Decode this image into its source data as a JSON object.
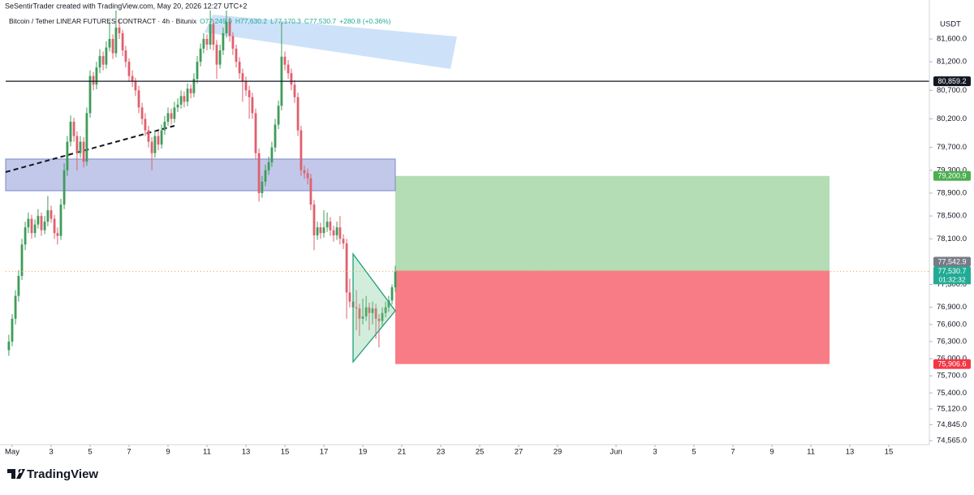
{
  "chart_data": {
    "type": "candlestick",
    "attribution": "SeSentirTrader created with TradingView.com, May 20, 2026 12:27 UTC+2",
    "title": "Bitcoin / Tether LINEAR FUTURES CONTRACT · 4h · Bitunix",
    "ohlc_labels": [
      "O77,249.9",
      "H77,630.2",
      "L77,170.3",
      "C77,530.7"
    ],
    "change": "+280.8 (+0.36%)",
    "currency": "USDT",
    "brand": "TradingView",
    "up_color": "#3f9c5a",
    "down_color": "#e0606e",
    "ylim": [
      74494,
      82140
    ],
    "xlim": [
      0.667,
      48.083
    ],
    "yticks": [
      {
        "value": 81600,
        "label": "81,600.0"
      },
      {
        "value": 81200,
        "label": "81,200.0"
      },
      {
        "value": 80700,
        "label": "80,700.0"
      },
      {
        "value": 80200,
        "label": "80,200.0"
      },
      {
        "value": 79700,
        "label": "79,700.0"
      },
      {
        "value": 79300,
        "label": "79,300.0"
      },
      {
        "value": 78900,
        "label": "78,900.0"
      },
      {
        "value": 78500,
        "label": "78,500.0"
      },
      {
        "value": 78100,
        "label": "78,100.0"
      },
      {
        "value": 77300,
        "label": "77,300.0"
      },
      {
        "value": 76900,
        "label": "76,900.0"
      },
      {
        "value": 76600,
        "label": "76,600.0"
      },
      {
        "value": 76300,
        "label": "76,300.0"
      },
      {
        "value": 76000,
        "label": "76,000.0"
      },
      {
        "value": 75700,
        "label": "75,700.0"
      },
      {
        "value": 75400,
        "label": "75,400.0"
      },
      {
        "value": 75120,
        "label": "75,120.0"
      },
      {
        "value": 74845,
        "label": "74,845.0"
      },
      {
        "value": 74565,
        "label": "74,565.0"
      }
    ],
    "xticks": [
      {
        "value": 1,
        "label": "May"
      },
      3,
      5,
      7,
      9,
      11,
      13,
      15,
      17,
      19,
      21,
      23,
      25,
      27,
      29,
      {
        "value": 32,
        "label": "Jun"
      },
      {
        "value": 34,
        "label": "3"
      },
      {
        "value": 36,
        "label": "5"
      },
      {
        "value": 38,
        "label": "7"
      },
      {
        "value": 40,
        "label": "9"
      },
      {
        "value": 42,
        "label": "11"
      },
      {
        "value": 44,
        "label": "13"
      },
      {
        "value": 46,
        "label": "15"
      }
    ],
    "price_lines": [
      {
        "value": 80859.2,
        "label": "80,859.2",
        "color": "#131722",
        "line": "solid"
      },
      {
        "value": 79200.9,
        "label": "79,200.9",
        "color": "#4caf50"
      },
      {
        "value": 77542.9,
        "label": "77,542.9",
        "color": "#787b86"
      },
      {
        "value": 77530.7,
        "label": "77,530.7",
        "color": "#22ab94",
        "line": "dotted",
        "countdown": "01:32:32"
      },
      {
        "value": 75906.6,
        "label": "75,906.6",
        "color": "#f23645"
      }
    ],
    "x": [
      0.83,
      1,
      1.17,
      1.33,
      1.5,
      1.67,
      1.83,
      2,
      2.17,
      2.33,
      2.5,
      2.67,
      2.83,
      3,
      3.17,
      3.33,
      3.5,
      3.67,
      3.83,
      4,
      4.17,
      4.33,
      4.5,
      4.67,
      4.83,
      5,
      5.17,
      5.33,
      5.5,
      5.67,
      5.83,
      6,
      6.17,
      6.33,
      6.5,
      6.67,
      6.83,
      7,
      7.17,
      7.33,
      7.5,
      7.67,
      7.83,
      8,
      8.17,
      8.33,
      8.5,
      8.67,
      8.83,
      9,
      9.17,
      9.33,
      9.5,
      9.67,
      9.83,
      10,
      10.17,
      10.33,
      10.5,
      10.67,
      10.83,
      11,
      11.17,
      11.33,
      11.5,
      11.67,
      11.83,
      12,
      12.17,
      12.33,
      12.5,
      12.67,
      12.83,
      13,
      13.17,
      13.33,
      13.5,
      13.67,
      13.83,
      14,
      14.17,
      14.33,
      14.5,
      14.67,
      14.83,
      15,
      15.17,
      15.33,
      15.5,
      15.67,
      15.83,
      16,
      16.17,
      16.33,
      16.5,
      16.67,
      16.83,
      17,
      17.17,
      17.33,
      17.5,
      17.67,
      17.83,
      18,
      18.17,
      18.33,
      18.5,
      18.67,
      18.83,
      19,
      19.17,
      19.33,
      19.5,
      19.67,
      19.83,
      20,
      20.17,
      20.33,
      20.5,
      20.67
    ],
    "candles": [
      [
        76150,
        76420,
        76050,
        76300
      ],
      [
        76300,
        76780,
        76220,
        76700
      ],
      [
        76700,
        77200,
        76600,
        77100
      ],
      [
        77100,
        77550,
        77000,
        77450
      ],
      [
        77450,
        78100,
        77380,
        78000
      ],
      [
        78000,
        78400,
        77900,
        78300
      ],
      [
        78300,
        78560,
        78200,
        78450
      ],
      [
        78450,
        78520,
        78100,
        78200
      ],
      [
        78200,
        78440,
        78120,
        78350
      ],
      [
        78350,
        78620,
        78280,
        78500
      ],
      [
        78500,
        78560,
        78150,
        78250
      ],
      [
        78250,
        78500,
        78180,
        78400
      ],
      [
        78400,
        78850,
        78320,
        78600
      ],
      [
        78600,
        78680,
        78380,
        78450
      ],
      [
        78450,
        78520,
        78100,
        78200
      ],
      [
        78200,
        78300,
        78000,
        78150
      ],
      [
        78150,
        78800,
        78080,
        78700
      ],
      [
        78700,
        79420,
        78620,
        79300
      ],
      [
        79300,
        79900,
        79200,
        79800
      ],
      [
        79800,
        80260,
        79720,
        80150
      ],
      [
        80150,
        80220,
        79800,
        79900
      ],
      [
        79900,
        79980,
        79300,
        79600
      ],
      [
        79600,
        79900,
        79520,
        79800
      ],
      [
        79800,
        79880,
        79350,
        79450
      ],
      [
        79450,
        80400,
        79380,
        80300
      ],
      [
        80300,
        81050,
        80220,
        80950
      ],
      [
        80950,
        81020,
        80700,
        80800
      ],
      [
        80800,
        81200,
        80720,
        81100
      ],
      [
        81100,
        81420,
        81000,
        81300
      ],
      [
        81300,
        81380,
        81050,
        81150
      ],
      [
        81150,
        81560,
        81080,
        81450
      ],
      [
        81450,
        81900,
        81380,
        81600
      ],
      [
        81600,
        81680,
        81250,
        81350
      ],
      [
        81350,
        82100,
        81280,
        81800
      ],
      [
        81800,
        81950,
        81600,
        81700
      ],
      [
        81700,
        81760,
        81300,
        81400
      ],
      [
        81400,
        81480,
        81100,
        81200
      ],
      [
        81200,
        81260,
        80850,
        80950
      ],
      [
        80950,
        81050,
        80760,
        80860
      ],
      [
        80860,
        80920,
        80600,
        80700
      ],
      [
        80700,
        80780,
        80300,
        80400
      ],
      [
        80400,
        80480,
        80100,
        80200
      ],
      [
        80200,
        80300,
        79900,
        80000
      ],
      [
        80000,
        80080,
        79700,
        79800
      ],
      [
        79800,
        79880,
        79300,
        79600
      ],
      [
        79600,
        80000,
        79520,
        79900
      ],
      [
        79900,
        79980,
        79650,
        79750
      ],
      [
        79750,
        80100,
        79680,
        80000
      ],
      [
        80000,
        80250,
        79920,
        80150
      ],
      [
        80150,
        80400,
        80080,
        80300
      ],
      [
        80300,
        80380,
        80100,
        80200
      ],
      [
        80200,
        80500,
        80130,
        80400
      ],
      [
        80400,
        80560,
        80320,
        80450
      ],
      [
        80450,
        80700,
        80380,
        80600
      ],
      [
        80600,
        80680,
        80400,
        80500
      ],
      [
        80500,
        80820,
        80420,
        80730
      ],
      [
        80730,
        80800,
        80560,
        80650
      ],
      [
        80650,
        81000,
        80580,
        80900
      ],
      [
        80900,
        81300,
        80820,
        81200
      ],
      [
        81200,
        81520,
        81120,
        81430
      ],
      [
        81430,
        81700,
        81350,
        81600
      ],
      [
        81600,
        81680,
        81400,
        81500
      ],
      [
        81500,
        82100,
        81420,
        81860
      ],
      [
        81860,
        81940,
        81400,
        81500
      ],
      [
        81500,
        81580,
        80900,
        81150
      ],
      [
        81150,
        81500,
        81080,
        81400
      ],
      [
        81400,
        81800,
        81320,
        81700
      ],
      [
        81700,
        82100,
        81620,
        81900
      ],
      [
        81900,
        81980,
        81550,
        81650
      ],
      [
        81650,
        81720,
        81320,
        81430
      ],
      [
        81430,
        81500,
        81100,
        81200
      ],
      [
        81200,
        81280,
        80900,
        81000
      ],
      [
        81000,
        81080,
        80500,
        80860
      ],
      [
        80860,
        80940,
        80600,
        80700
      ],
      [
        80700,
        80780,
        80200,
        80580
      ],
      [
        80580,
        80660,
        80200,
        80300
      ],
      [
        80300,
        80380,
        79500,
        79600
      ],
      [
        79600,
        79680,
        78750,
        78900
      ],
      [
        78900,
        79200,
        78820,
        79100
      ],
      [
        79100,
        79400,
        79020,
        79300
      ],
      [
        79300,
        79540,
        79220,
        79440
      ],
      [
        79440,
        79800,
        79360,
        79700
      ],
      [
        79700,
        80200,
        79620,
        80100
      ],
      [
        80100,
        80520,
        80020,
        80430
      ],
      [
        80430,
        81900,
        80350,
        81290
      ],
      [
        81290,
        81380,
        81050,
        81150
      ],
      [
        81150,
        81230,
        80900,
        81000
      ],
      [
        81000,
        81080,
        80700,
        80800
      ],
      [
        80800,
        80880,
        80480,
        80580
      ],
      [
        80580,
        80660,
        79900,
        80000
      ],
      [
        80000,
        80080,
        79200,
        79300
      ],
      [
        79300,
        79380,
        79150,
        79250
      ],
      [
        79250,
        79330,
        79050,
        79160
      ],
      [
        79160,
        79240,
        78600,
        78700
      ],
      [
        78700,
        78780,
        77900,
        78160
      ],
      [
        78160,
        78400,
        78080,
        78300
      ],
      [
        78300,
        78380,
        78100,
        78200
      ],
      [
        78200,
        78600,
        78120,
        78300
      ],
      [
        78300,
        78560,
        78220,
        78400
      ],
      [
        78400,
        78480,
        78150,
        78250
      ],
      [
        78250,
        78330,
        78050,
        78160
      ],
      [
        78160,
        78400,
        78080,
        78300
      ],
      [
        78300,
        78500,
        78000,
        78100
      ],
      [
        78100,
        78180,
        77920,
        78020
      ],
      [
        78020,
        78100,
        76700,
        77160
      ],
      [
        77160,
        77400,
        76900,
        77000
      ],
      [
        77000,
        77080,
        76600,
        76900
      ],
      [
        76900,
        77200,
        76500,
        76880
      ],
      [
        76880,
        76960,
        76400,
        76700
      ],
      [
        76700,
        77050,
        76600,
        76740
      ],
      [
        76740,
        77100,
        76660,
        76900
      ],
      [
        76900,
        76980,
        76500,
        76800
      ],
      [
        76800,
        77000,
        76600,
        76880
      ],
      [
        76880,
        76960,
        76350,
        76700
      ],
      [
        76700,
        76780,
        76200,
        76660
      ],
      [
        76660,
        76900,
        76580,
        76800
      ],
      [
        76800,
        77000,
        76720,
        76900
      ],
      [
        76900,
        77100,
        76820,
        77020
      ],
      [
        77020,
        77300,
        76950,
        77250
      ],
      [
        77249.9,
        77630.2,
        77170.3,
        77530.7
      ]
    ]
  }
}
